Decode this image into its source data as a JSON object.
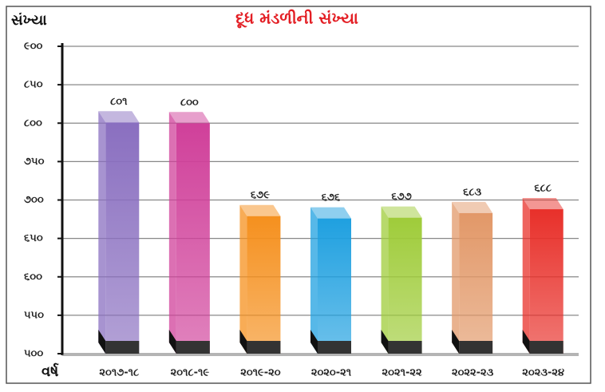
{
  "chart_data": {
    "type": "bar",
    "title": "દૂધ મંડળીની સંખ્યા",
    "y_label": "સંખ્યા",
    "x_label": "વર્ષ",
    "categories": [
      "૨૦૧૭-૧૮",
      "૨૦૧૮-૧૯",
      "૨૦૧૯-૨૦",
      "૨૦૨૦-૨૧",
      "૨૦૨૧-૨૨",
      "૨૦૨૨-૨૩",
      "૨૦૨૩-૨૪"
    ],
    "values": [
      801,
      800,
      679,
      676,
      677,
      683,
      688
    ],
    "value_labels": [
      "૮૦૧",
      "૮૦૦",
      "૬૭૯",
      "૬૭૬",
      "૬૭૭",
      "૬૮૩",
      "૬૮૮"
    ],
    "colors": [
      "#8a6fc0",
      "#d0409a",
      "#f5901e",
      "#1fa0e0",
      "#9fcc3a",
      "#e29868",
      "#e8302a"
    ],
    "ylim": [
      500,
      900
    ],
    "yticks": [
      {
        "value": 500,
        "label": "૫૦૦"
      },
      {
        "value": 550,
        "label": "૫૫૦"
      },
      {
        "value": 600,
        "label": "૬૦૦"
      },
      {
        "value": 650,
        "label": "૬૫૦"
      },
      {
        "value": 700,
        "label": "૭૦૦"
      },
      {
        "value": 750,
        "label": "૭૫૦"
      },
      {
        "value": 800,
        "label": "૮૦૦"
      },
      {
        "value": 850,
        "label": "૮૫૦"
      },
      {
        "value": 900,
        "label": "૯૦૦"
      }
    ],
    "grid": true
  }
}
